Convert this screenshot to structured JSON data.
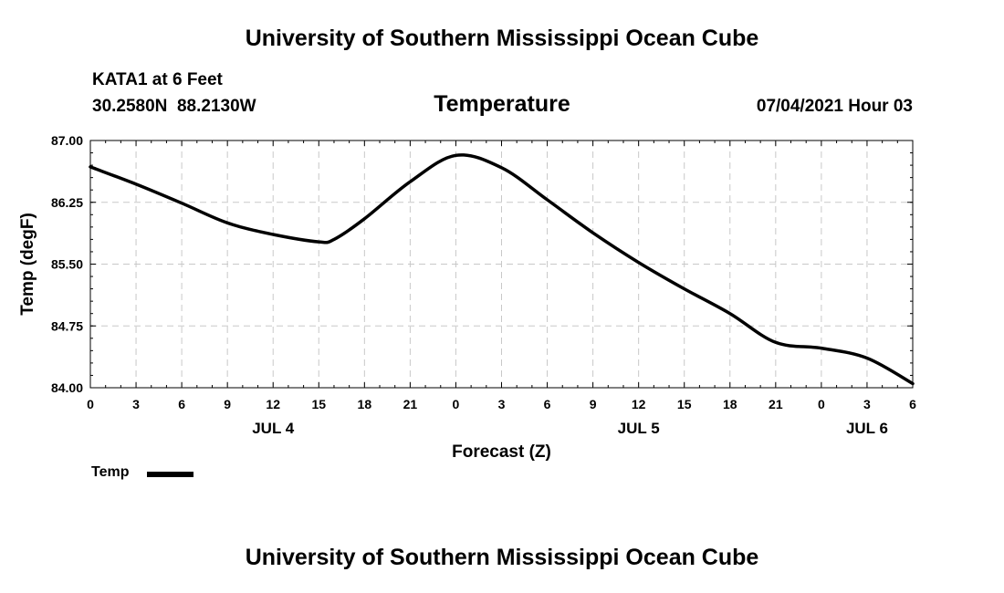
{
  "header": {
    "title": "University of Southern Mississippi Ocean Cube",
    "station": "KATA1 at 6 Feet",
    "coordinates": "30.2580N  88.2130W",
    "variable": "Temperature",
    "datetime": "07/04/2021 Hour 03"
  },
  "footer": {
    "title": "University of Southern Mississippi Ocean Cube"
  },
  "chart_data": {
    "type": "line",
    "title": "Temperature",
    "xlabel": "Forecast (Z)",
    "ylabel": "Temp (degF)",
    "xlim": [
      0,
      54
    ],
    "ylim": [
      84.0,
      87.0
    ],
    "y_ticks": [
      "84.00",
      "84.75",
      "85.50",
      "86.25",
      "87.00"
    ],
    "y_tick_values": [
      84.0,
      84.75,
      85.5,
      86.25,
      87.0
    ],
    "x_tick_labels": [
      "0",
      "3",
      "6",
      "9",
      "12",
      "15",
      "18",
      "21",
      "0",
      "3",
      "6",
      "9",
      "12",
      "15",
      "18",
      "21",
      "0",
      "3",
      "6"
    ],
    "day_labels": [
      {
        "label": "JUL 4",
        "hour": 12
      },
      {
        "label": "JUL 5",
        "hour": 36
      },
      {
        "label": "JUL 6",
        "hour": 51
      }
    ],
    "grid": true,
    "legend": "bottom-left",
    "series": [
      {
        "name": "Temp",
        "color": "#000000",
        "x": [
          0,
          3,
          6,
          9,
          12,
          15,
          16,
          18,
          21,
          24,
          27,
          30,
          33,
          36,
          39,
          42,
          45,
          48,
          51,
          54
        ],
        "y": [
          86.68,
          86.47,
          86.24,
          86.0,
          85.86,
          85.77,
          85.8,
          86.05,
          86.5,
          86.82,
          86.67,
          86.28,
          85.88,
          85.52,
          85.2,
          84.9,
          84.55,
          84.48,
          84.36,
          84.05
        ]
      }
    ]
  }
}
